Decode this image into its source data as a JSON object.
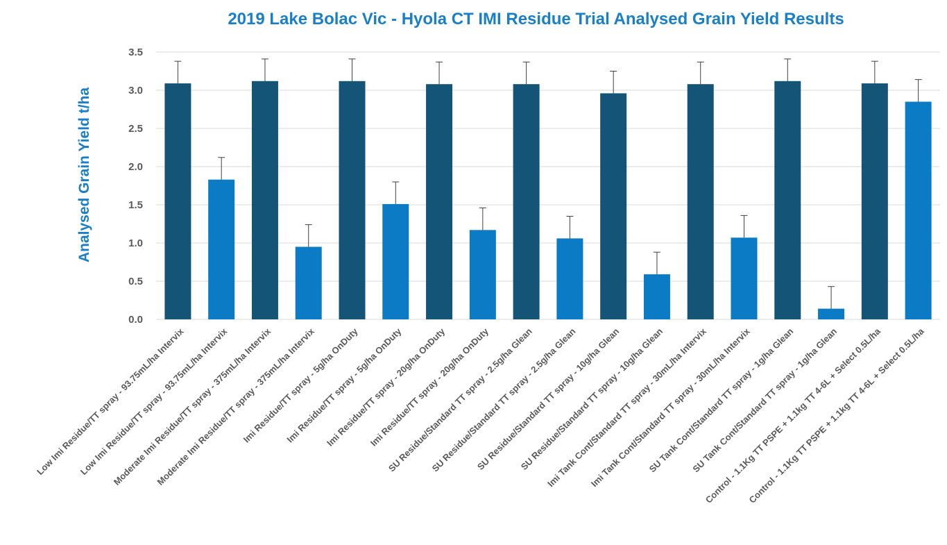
{
  "chart_data": {
    "type": "bar",
    "title": "2019 Lake Bolac Vic - Hyola CT IMI Residue Trial Analysed Grain Yield Results",
    "xlabel": "",
    "ylabel": "Analysed Grain Yield t/ha",
    "ylim": [
      0,
      3.5
    ],
    "yticks": [
      "0.0",
      "0.5",
      "1.0",
      "1.5",
      "2.0",
      "2.5",
      "3.0",
      "3.5"
    ],
    "grid": true,
    "legend": "none",
    "colors": {
      "dark": "#145477",
      "light": "#0a7bc4",
      "error_bar": "#404040",
      "grid": "#d9d9d9"
    },
    "categories": [
      "Low Imi Residue/TT spray - 93.75mL/ha Intervix",
      "Low Imi Residue/TT spray - 93.75mL/ha Intervix",
      "Moderate Imi Residue/TT spray - 375mL/ha Intervix",
      "Moderate Imi Residue/TT spray - 375mL/ha Intervix",
      "Imi Residue/TT spray - 5g/ha OnDuty",
      "Imi Residue/TT spray - 5g/ha OnDuty",
      "Imi Residue/TT spray - 20g/ha OnDuty",
      "Imi Residue/TT spray - 20g/ha OnDuty",
      "SU Residue/Standard TT spray - 2.5g/ha Glean",
      "SU Residue/Standard TT spray - 2.5g/ha Glean",
      "SU Residue/Standard TT spray - 10g/ha Glean",
      "SU Residue/Standard TT spray - 10g/ha Glean",
      "Imi Tank Cont/Standard TT spray - 30mL/ha Intervix",
      "Imi Tank Cont/Standard TT spray - 30mL/ha Intervix",
      "SU Tank Cont/Standard TT spray - 1g/ha Glean",
      "SU Tank Cont/Standard TT spray - 1g/ha Glean",
      "Control - 1.1Kg TT PSPE + 1.1kg TT 4-6L + Select 0.5L/ha",
      "Control - 1.1Kg TT PSPE + 1.1kg TT 4-6L + Select 0.5L/ha"
    ],
    "values": [
      3.09,
      1.83,
      3.12,
      0.95,
      3.12,
      1.51,
      3.08,
      1.17,
      3.08,
      1.06,
      2.96,
      0.59,
      3.08,
      1.07,
      3.12,
      0.14,
      3.09,
      2.85
    ],
    "error_upper": [
      0.29,
      0.29,
      0.29,
      0.29,
      0.29,
      0.29,
      0.29,
      0.29,
      0.29,
      0.29,
      0.29,
      0.29,
      0.29,
      0.29,
      0.29,
      0.29,
      0.29,
      0.29
    ],
    "bar_shade": [
      "dark",
      "light",
      "dark",
      "light",
      "dark",
      "light",
      "dark",
      "light",
      "dark",
      "light",
      "dark",
      "light",
      "dark",
      "light",
      "dark",
      "light",
      "dark",
      "light"
    ]
  }
}
